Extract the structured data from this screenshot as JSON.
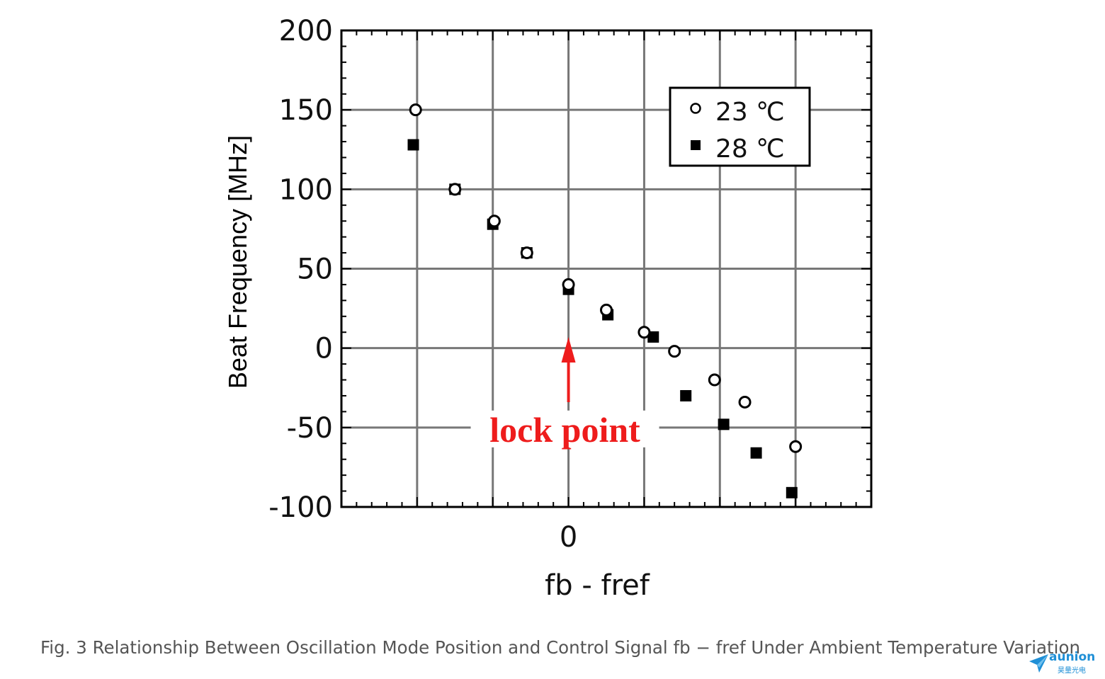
{
  "chart_data": {
    "type": "scatter",
    "ylabel": "Beat Frequency [MHz]",
    "xlabel": "fb - fref",
    "ylim": [
      -100,
      200
    ],
    "xlim": [
      -3,
      4
    ],
    "yticks": [
      200,
      150,
      100,
      50,
      0,
      -50,
      -100
    ],
    "xticks": [
      {
        "value": 0,
        "label": "0"
      }
    ],
    "x_gridlines": [
      -2,
      -1,
      0,
      1,
      2,
      3
    ],
    "grid": true,
    "legend_position": "top-right",
    "series": [
      {
        "name": "23 ℃",
        "marker": "open-circle",
        "color": "#000000",
        "points": [
          {
            "x": -2.02,
            "y": 150
          },
          {
            "x": -1.5,
            "y": 100
          },
          {
            "x": -0.98,
            "y": 80
          },
          {
            "x": -0.55,
            "y": 60
          },
          {
            "x": 0.0,
            "y": 40
          },
          {
            "x": 0.5,
            "y": 24
          },
          {
            "x": 1.0,
            "y": 10
          },
          {
            "x": 1.4,
            "y": -2
          },
          {
            "x": 1.93,
            "y": -20
          },
          {
            "x": 2.33,
            "y": -34
          },
          {
            "x": 3.0,
            "y": -62
          }
        ]
      },
      {
        "name": "28 ℃",
        "marker": "filled-square",
        "color": "#000000",
        "points": [
          {
            "x": -2.05,
            "y": 128
          },
          {
            "x": -1.5,
            "y": 100
          },
          {
            "x": -1.0,
            "y": 78
          },
          {
            "x": -0.55,
            "y": 60
          },
          {
            "x": 0.0,
            "y": 37
          },
          {
            "x": 0.52,
            "y": 21
          },
          {
            "x": 1.12,
            "y": 7
          },
          {
            "x": 1.55,
            "y": -30
          },
          {
            "x": 2.05,
            "y": -48
          },
          {
            "x": 2.48,
            "y": -66
          },
          {
            "x": 2.95,
            "y": -91
          }
        ]
      }
    ],
    "annotation": {
      "text": "lock point",
      "color": "#ee1c1c",
      "arrow_target": {
        "x": 0,
        "y": 7
      }
    }
  },
  "caption": "Fig. 3 Relationship Between Oscillation Mode Position and Control Signal fb − fref Under Ambient Temperature Variation",
  "logo": {
    "word": "aunion",
    "sub": "昊量光电"
  }
}
